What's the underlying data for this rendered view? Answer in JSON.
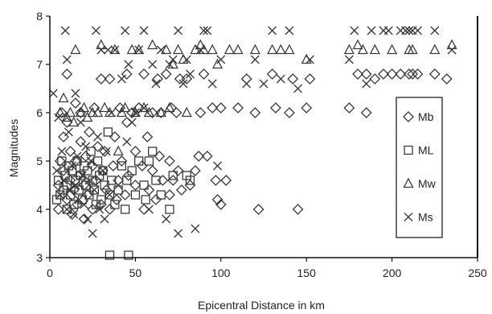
{
  "chart_data": {
    "type": "scatter",
    "title": "",
    "xlabel": "Epicentral Distance in km",
    "ylabel": "Magnitudes",
    "xlim": [
      0,
      250
    ],
    "ylim": [
      3,
      8
    ],
    "xticks": [
      0,
      50,
      100,
      150,
      200,
      250
    ],
    "yticks": [
      3,
      4,
      5,
      6,
      7,
      8
    ],
    "grid": "none",
    "legend_position": "right",
    "series": [
      {
        "name": "Mb",
        "marker": "diamond",
        "points": [
          [
            5,
            4.0
          ],
          [
            5,
            4.5
          ],
          [
            6,
            5.0
          ],
          [
            7,
            6.0
          ],
          [
            8,
            4.8
          ],
          [
            8,
            5.5
          ],
          [
            10,
            4.2
          ],
          [
            10,
            5.8
          ],
          [
            10,
            6.8
          ],
          [
            12,
            4.6
          ],
          [
            12,
            5.2
          ],
          [
            13,
            3.9
          ],
          [
            14,
            4.4
          ],
          [
            15,
            5.0
          ],
          [
            15,
            6.2
          ],
          [
            16,
            4.1
          ],
          [
            17,
            4.7
          ],
          [
            18,
            5.4
          ],
          [
            18,
            6.0
          ],
          [
            20,
            3.8
          ],
          [
            20,
            4.5
          ],
          [
            21,
            5.1
          ],
          [
            22,
            4.3
          ],
          [
            23,
            5.6
          ],
          [
            25,
            4.0
          ],
          [
            25,
            4.9
          ],
          [
            26,
            6.1
          ],
          [
            27,
            4.6
          ],
          [
            28,
            5.3
          ],
          [
            30,
            4.1
          ],
          [
            30,
            6.7
          ],
          [
            31,
            4.8
          ],
          [
            32,
            5.2
          ],
          [
            33,
            4.4
          ],
          [
            35,
            4.0
          ],
          [
            35,
            6.7
          ],
          [
            37,
            4.9
          ],
          [
            38,
            5.5
          ],
          [
            39,
            4.2
          ],
          [
            40,
            4.6
          ],
          [
            41,
            6.1
          ],
          [
            42,
            5.0
          ],
          [
            44,
            4.3
          ],
          [
            45,
            5.8
          ],
          [
            45,
            6.8
          ],
          [
            46,
            4.7
          ],
          [
            48,
            6.0
          ],
          [
            50,
            4.5
          ],
          [
            50,
            5.2
          ],
          [
            52,
            6.1
          ],
          [
            54,
            4.9
          ],
          [
            55,
            4.0
          ],
          [
            55,
            6.8
          ],
          [
            57,
            5.5
          ],
          [
            58,
            4.4
          ],
          [
            60,
            6.0
          ],
          [
            60,
            4.8
          ],
          [
            62,
            4.2
          ],
          [
            63,
            6.7
          ],
          [
            64,
            5.1
          ],
          [
            65,
            6.0
          ],
          [
            66,
            4.6
          ],
          [
            68,
            6.8
          ],
          [
            70,
            4.3
          ],
          [
            70,
            5.0
          ],
          [
            71,
            6.1
          ],
          [
            72,
            4.6
          ],
          [
            74,
            6.0
          ],
          [
            75,
            4.8
          ],
          [
            76,
            6.7
          ],
          [
            77,
            4.4
          ],
          [
            80,
            6.7
          ],
          [
            82,
            4.5
          ],
          [
            85,
            4.8
          ],
          [
            87,
            5.1
          ],
          [
            88,
            6.0
          ],
          [
            90,
            6.8
          ],
          [
            92,
            5.1
          ],
          [
            95,
            6.1
          ],
          [
            97,
            4.6
          ],
          [
            98,
            4.2
          ],
          [
            100,
            4.1
          ],
          [
            100,
            6.1
          ],
          [
            103,
            4.6
          ],
          [
            110,
            6.1
          ],
          [
            115,
            6.7
          ],
          [
            120,
            6.0
          ],
          [
            122,
            4.0
          ],
          [
            130,
            6.8
          ],
          [
            132,
            6.1
          ],
          [
            140,
            6.0
          ],
          [
            142,
            6.7
          ],
          [
            145,
            4.0
          ],
          [
            150,
            6.1
          ],
          [
            152,
            6.7
          ],
          [
            175,
            6.1
          ],
          [
            180,
            6.8
          ],
          [
            185,
            6.8
          ],
          [
            185,
            6.0
          ],
          [
            190,
            6.7
          ],
          [
            195,
            6.8
          ],
          [
            200,
            6.8
          ],
          [
            205,
            6.8
          ],
          [
            210,
            6.8
          ],
          [
            212,
            6.8
          ],
          [
            215,
            6.8
          ],
          [
            225,
            6.8
          ],
          [
            232,
            6.7
          ]
        ]
      },
      {
        "name": "ML",
        "marker": "square",
        "points": [
          [
            4,
            4.2
          ],
          [
            5,
            4.6
          ],
          [
            6,
            4.3
          ],
          [
            7,
            5.0
          ],
          [
            8,
            4.4
          ],
          [
            9,
            4.7
          ],
          [
            10,
            4.0
          ],
          [
            10,
            4.5
          ],
          [
            11,
            4.9
          ],
          [
            12,
            4.3
          ],
          [
            13,
            4.8
          ],
          [
            14,
            4.1
          ],
          [
            15,
            4.6
          ],
          [
            16,
            5.0
          ],
          [
            17,
            4.4
          ],
          [
            18,
            4.7
          ],
          [
            19,
            4.2
          ],
          [
            20,
            4.9
          ],
          [
            21,
            4.5
          ],
          [
            22,
            4.8
          ],
          [
            23,
            4.3
          ],
          [
            24,
            5.2
          ],
          [
            25,
            4.6
          ],
          [
            26,
            4.4
          ],
          [
            27,
            4.1
          ],
          [
            28,
            5.0
          ],
          [
            29,
            4.7
          ],
          [
            30,
            4.2
          ],
          [
            31,
            4.8
          ],
          [
            32,
            4.5
          ],
          [
            34,
            5.6
          ],
          [
            35,
            4.3
          ],
          [
            35,
            3.05
          ],
          [
            36,
            4.6
          ],
          [
            38,
            4.1
          ],
          [
            40,
            4.4
          ],
          [
            42,
            4.9
          ],
          [
            44,
            4.0
          ],
          [
            45,
            4.6
          ],
          [
            46,
            3.05
          ],
          [
            48,
            4.8
          ],
          [
            50,
            4.3
          ],
          [
            52,
            5.0
          ],
          [
            55,
            4.5
          ],
          [
            56,
            4.2
          ],
          [
            58,
            5.0
          ],
          [
            60,
            5.2
          ],
          [
            62,
            4.6
          ],
          [
            65,
            4.3
          ],
          [
            70,
            4.0
          ],
          [
            72,
            4.7
          ],
          [
            80,
            4.7
          ],
          [
            82,
            4.6
          ]
        ]
      },
      {
        "name": "Mw",
        "marker": "triangle",
        "points": [
          [
            6,
            6.0
          ],
          [
            8,
            6.3
          ],
          [
            10,
            5.9
          ],
          [
            12,
            6.0
          ],
          [
            14,
            5.8
          ],
          [
            15,
            7.3
          ],
          [
            18,
            6.0
          ],
          [
            20,
            6.1
          ],
          [
            22,
            5.9
          ],
          [
            25,
            6.0
          ],
          [
            28,
            6.0
          ],
          [
            30,
            7.4
          ],
          [
            32,
            6.1
          ],
          [
            35,
            6.0
          ],
          [
            38,
            7.3
          ],
          [
            40,
            5.2
          ],
          [
            42,
            6.0
          ],
          [
            44,
            6.1
          ],
          [
            48,
            7.3
          ],
          [
            50,
            6.0
          ],
          [
            52,
            7.3
          ],
          [
            55,
            6.1
          ],
          [
            58,
            6.0
          ],
          [
            60,
            7.4
          ],
          [
            65,
            6.0
          ],
          [
            68,
            7.3
          ],
          [
            70,
            6.1
          ],
          [
            72,
            7.0
          ],
          [
            75,
            7.3
          ],
          [
            78,
            7.1
          ],
          [
            80,
            6.0
          ],
          [
            85,
            7.3
          ],
          [
            88,
            7.4
          ],
          [
            90,
            7.3
          ],
          [
            95,
            7.3
          ],
          [
            98,
            7.0
          ],
          [
            105,
            7.3
          ],
          [
            110,
            7.3
          ],
          [
            120,
            7.3
          ],
          [
            130,
            7.3
          ],
          [
            135,
            7.3
          ],
          [
            140,
            7.3
          ],
          [
            150,
            7.1
          ],
          [
            175,
            7.3
          ],
          [
            180,
            7.4
          ],
          [
            183,
            7.3
          ],
          [
            190,
            7.3
          ],
          [
            200,
            7.3
          ],
          [
            210,
            7.3
          ],
          [
            212,
            7.3
          ],
          [
            225,
            7.3
          ],
          [
            235,
            7.4
          ]
        ]
      },
      {
        "name": "Ms",
        "marker": "x",
        "points": [
          [
            2,
            6.4
          ],
          [
            4,
            4.8
          ],
          [
            5,
            5.9
          ],
          [
            6,
            4.3
          ],
          [
            7,
            5.2
          ],
          [
            8,
            4.6
          ],
          [
            9,
            7.7
          ],
          [
            10,
            7.1
          ],
          [
            10,
            4.0
          ],
          [
            11,
            5.6
          ],
          [
            12,
            4.4
          ],
          [
            13,
            4.9
          ],
          [
            14,
            3.9
          ],
          [
            15,
            6.4
          ],
          [
            15,
            4.5
          ],
          [
            16,
            5.1
          ],
          [
            17,
            4.2
          ],
          [
            18,
            5.8
          ],
          [
            19,
            4.7
          ],
          [
            20,
            4.1
          ],
          [
            21,
            5.3
          ],
          [
            22,
            3.8
          ],
          [
            23,
            4.6
          ],
          [
            24,
            5.0
          ],
          [
            25,
            3.5
          ],
          [
            26,
            4.4
          ],
          [
            27,
            7.7
          ],
          [
            28,
            5.5
          ],
          [
            29,
            4.0
          ],
          [
            30,
            7.3
          ],
          [
            31,
            4.8
          ],
          [
            32,
            3.8
          ],
          [
            33,
            5.2
          ],
          [
            34,
            7.3
          ],
          [
            35,
            4.3
          ],
          [
            36,
            6.0
          ],
          [
            38,
            7.3
          ],
          [
            40,
            4.5
          ],
          [
            42,
            6.7
          ],
          [
            44,
            7.7
          ],
          [
            45,
            5.4
          ],
          [
            46,
            7.0
          ],
          [
            48,
            5.8
          ],
          [
            50,
            6.0
          ],
          [
            52,
            7.3
          ],
          [
            55,
            7.7
          ],
          [
            55,
            6.1
          ],
          [
            58,
            4.0
          ],
          [
            60,
            7.0
          ],
          [
            62,
            6.6
          ],
          [
            65,
            7.3
          ],
          [
            68,
            3.8
          ],
          [
            70,
            7.0
          ],
          [
            72,
            7.1
          ],
          [
            75,
            7.7
          ],
          [
            75,
            3.5
          ],
          [
            78,
            6.6
          ],
          [
            80,
            7.1
          ],
          [
            82,
            6.8
          ],
          [
            85,
            3.6
          ],
          [
            88,
            7.3
          ],
          [
            90,
            7.7
          ],
          [
            92,
            7.7
          ],
          [
            95,
            6.6
          ],
          [
            98,
            4.9
          ],
          [
            100,
            7.1
          ],
          [
            115,
            6.6
          ],
          [
            120,
            7.1
          ],
          [
            125,
            6.6
          ],
          [
            130,
            7.7
          ],
          [
            135,
            6.7
          ],
          [
            140,
            7.7
          ],
          [
            145,
            6.5
          ],
          [
            152,
            7.1
          ],
          [
            175,
            7.1
          ],
          [
            178,
            7.7
          ],
          [
            185,
            6.6
          ],
          [
            188,
            7.7
          ],
          [
            195,
            7.7
          ],
          [
            198,
            7.7
          ],
          [
            205,
            7.7
          ],
          [
            208,
            7.7
          ],
          [
            210,
            7.7
          ],
          [
            212,
            7.7
          ],
          [
            215,
            7.7
          ],
          [
            225,
            7.7
          ],
          [
            235,
            7.3
          ]
        ]
      }
    ]
  }
}
